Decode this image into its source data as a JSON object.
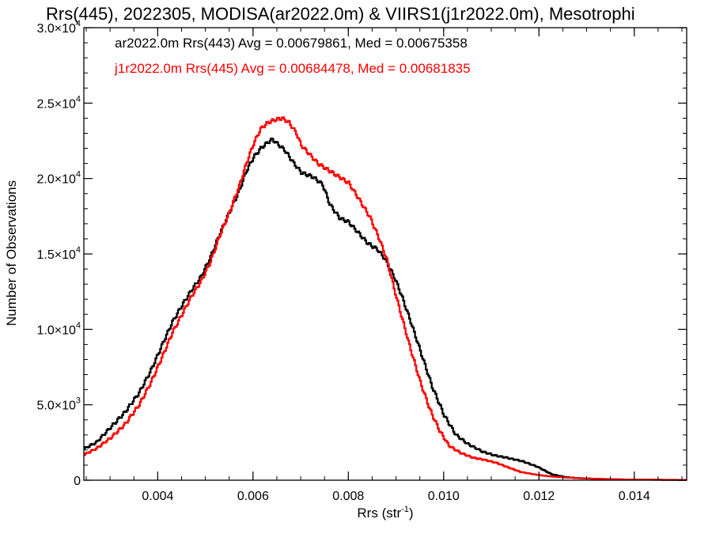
{
  "chart_data": {
    "type": "line",
    "title": "Rrs(445), 2022305, MODISA(ar2022.0m) & VIIRS1(j1r2022.0m), Mesotrophi",
    "xlabel_main": "Rrs (str",
    "xlabel_sup": "-1",
    "xlabel_tail": ")",
    "ylabel": "Number of Observations",
    "xlim": [
      0.00245,
      0.0151
    ],
    "ylim": [
      0,
      30000
    ],
    "x_ticks": [
      {
        "value": 0.004,
        "label": "0.004"
      },
      {
        "value": 0.006,
        "label": "0.006"
      },
      {
        "value": 0.008,
        "label": "0.008"
      },
      {
        "value": 0.01,
        "label": "0.010"
      },
      {
        "value": 0.012,
        "label": "0.012"
      },
      {
        "value": 0.014,
        "label": "0.014"
      }
    ],
    "y_ticks": [
      {
        "value": 0,
        "mantissa": "0",
        "exponent": ""
      },
      {
        "value": 5000,
        "mantissa": "5.0×10",
        "exponent": "3"
      },
      {
        "value": 10000,
        "mantissa": "1.0×10",
        "exponent": "4"
      },
      {
        "value": 15000,
        "mantissa": "1.5×10",
        "exponent": "4"
      },
      {
        "value": 20000,
        "mantissa": "2.0×10",
        "exponent": "4"
      },
      {
        "value": 25000,
        "mantissa": "2.5×10",
        "exponent": "4"
      },
      {
        "value": 30000,
        "mantissa": "3.0×10",
        "exponent": "4"
      }
    ],
    "legend_placement": "top-left",
    "series": [
      {
        "name": "ar2022.0m Rrs(443)",
        "legend_text": "ar2022.0m Rrs(443) Avg = 0.00679861, Med = 0.00675358",
        "color": "#000000",
        "x": [
          0.00245,
          0.0027,
          0.003,
          0.0033,
          0.0036,
          0.00385,
          0.0041,
          0.0043,
          0.0045,
          0.0047,
          0.0049,
          0.0051,
          0.0053,
          0.0055,
          0.0057,
          0.00585,
          0.006,
          0.00615,
          0.0063,
          0.0064,
          0.0065,
          0.00665,
          0.00685,
          0.007,
          0.00725,
          0.00745,
          0.0076,
          0.0078,
          0.008,
          0.0082,
          0.0084,
          0.0086,
          0.00875,
          0.00895,
          0.0091,
          0.0093,
          0.00955,
          0.00975,
          0.01,
          0.01025,
          0.0105,
          0.0108,
          0.01105,
          0.0113,
          0.01165,
          0.01195,
          0.01225,
          0.0125,
          0.01275,
          0.0132,
          0.0137,
          0.0145,
          0.0151
        ],
        "y": [
          2100,
          2500,
          3500,
          4500,
          5800,
          7300,
          9100,
          10500,
          11600,
          12600,
          13500,
          14800,
          16400,
          17800,
          19200,
          20500,
          21400,
          22000,
          22400,
          22600,
          22300,
          21900,
          21000,
          20400,
          20100,
          19600,
          18300,
          17400,
          17100,
          16400,
          15700,
          15300,
          14700,
          13500,
          12300,
          10500,
          8100,
          6200,
          4300,
          3000,
          2400,
          1900,
          1650,
          1500,
          1250,
          900,
          400,
          230,
          150,
          90,
          50,
          30,
          20
        ]
      },
      {
        "name": "j1r2022.0m Rrs(445)",
        "legend_text": "j1r2022.0m Rrs(445) Avg = 0.00684478, Med = 0.00681835",
        "color": "#ff0000",
        "x": [
          0.00245,
          0.0027,
          0.003,
          0.0033,
          0.0036,
          0.00385,
          0.0041,
          0.0043,
          0.0045,
          0.0047,
          0.0049,
          0.0051,
          0.0053,
          0.0055,
          0.0057,
          0.00585,
          0.006,
          0.00615,
          0.0063,
          0.00645,
          0.0066,
          0.00675,
          0.0069,
          0.007,
          0.00715,
          0.00735,
          0.00755,
          0.00775,
          0.008,
          0.0082,
          0.00845,
          0.00865,
          0.0088,
          0.009,
          0.00925,
          0.0095,
          0.0097,
          0.0099,
          0.0101,
          0.01035,
          0.0106,
          0.01085,
          0.0111,
          0.0113,
          0.0116,
          0.0119,
          0.0122,
          0.0125,
          0.0128,
          0.0132,
          0.0138,
          0.0145,
          0.0151
        ],
        "y": [
          1700,
          2100,
          2800,
          3700,
          5000,
          6500,
          8300,
          9800,
          11000,
          12200,
          13200,
          14500,
          16300,
          17800,
          19500,
          21000,
          22300,
          23300,
          23700,
          23900,
          24000,
          23700,
          23000,
          22200,
          21700,
          21000,
          20600,
          20200,
          19700,
          18700,
          17400,
          15900,
          14600,
          12100,
          9200,
          6500,
          4700,
          3300,
          2300,
          1800,
          1500,
          1350,
          1150,
          900,
          550,
          380,
          260,
          190,
          140,
          90,
          50,
          25,
          15
        ]
      }
    ]
  }
}
